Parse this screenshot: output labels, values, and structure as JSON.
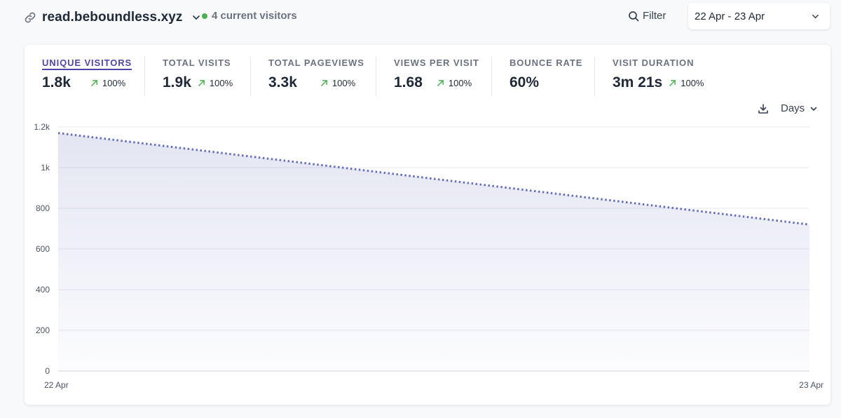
{
  "header": {
    "site_name": "read.beboundless.xyz",
    "current_visitors": "4 current visitors",
    "filter_label": "Filter",
    "date_range": "22 Apr - 23 Apr"
  },
  "metrics": [
    {
      "label": "UNIQUE VISITORS",
      "value": "1.8k",
      "change": "100%",
      "active": true
    },
    {
      "label": "TOTAL VISITS",
      "value": "1.9k",
      "change": "100%"
    },
    {
      "label": "TOTAL PAGEVIEWS",
      "value": "3.3k",
      "change": "100%"
    },
    {
      "label": "VIEWS PER VISIT",
      "value": "1.68",
      "change": "100%"
    },
    {
      "label": "BOUNCE RATE",
      "value": "60%"
    },
    {
      "label": "VISIT DURATION",
      "value": "3m 21s",
      "change": "100%"
    }
  ],
  "controls": {
    "interval": "Days"
  },
  "colors": {
    "accent": "#4f46a5",
    "line": "#6670b8",
    "live_dot": "#4caf50",
    "trend_up": "#4caf50"
  },
  "chart_data": {
    "type": "area",
    "x": [
      "22 Apr",
      "23 Apr"
    ],
    "series": [
      {
        "name": "Unique visitors",
        "values": [
          1170,
          720
        ]
      }
    ],
    "yticks": [
      "1.2k",
      "1k",
      "800",
      "600",
      "400",
      "200",
      "0"
    ],
    "ytick_values": [
      1200,
      1000,
      800,
      600,
      400,
      200,
      0
    ],
    "ylim": [
      0,
      1200
    ],
    "line_style": "dotted",
    "grid": true
  }
}
